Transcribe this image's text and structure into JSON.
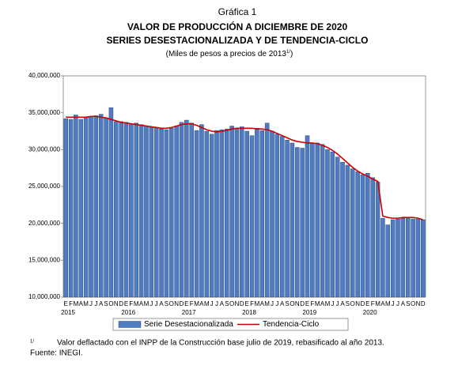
{
  "chart_data": {
    "type": "bar",
    "kicker": "Gráfica 1",
    "title": "VALOR DE PRODUCCIÓN A DICIEMBRE DE 2020",
    "title2": "SERIES DESESTACIONALIZADA Y DE TENDENCIA-CICLO",
    "subtitle": "(Miles de pesos a precios de 2013",
    "subtitle_sup": "1/",
    "subtitle_end": ")",
    "categories": [
      "E",
      "F",
      "M",
      "A",
      "M",
      "J",
      "J",
      "A",
      "S",
      "O",
      "N",
      "D",
      "E",
      "F",
      "M",
      "A",
      "M",
      "J",
      "J",
      "A",
      "S",
      "O",
      "N",
      "D",
      "E",
      "F",
      "M",
      "A",
      "M",
      "J",
      "J",
      "A",
      "S",
      "O",
      "N",
      "D",
      "E",
      "F",
      "M",
      "A",
      "M",
      "J",
      "J",
      "A",
      "S",
      "O",
      "N",
      "D",
      "E",
      "F",
      "M",
      "A",
      "M",
      "J",
      "J",
      "A",
      "S",
      "O",
      "N",
      "D",
      "E",
      "F",
      "M",
      "A",
      "M",
      "J",
      "J",
      "A",
      "S",
      "O",
      "N",
      "D"
    ],
    "years": [
      "2015",
      "2016",
      "2017",
      "2018",
      "2019",
      "2020"
    ],
    "series": [
      {
        "name": "Serie Desestacionalizada",
        "color": "#4f7cc0",
        "type": "bar",
        "values": [
          34200000,
          34100000,
          34700000,
          34100000,
          34400000,
          34500000,
          34600000,
          34800000,
          34300000,
          35700000,
          33800000,
          33800000,
          33700000,
          33500000,
          33600000,
          33400000,
          33200000,
          33000000,
          33000000,
          32800000,
          32700000,
          32900000,
          33200000,
          33700000,
          34000000,
          33600000,
          32600000,
          33400000,
          32500000,
          32100000,
          32600000,
          32700000,
          32800000,
          33200000,
          32900000,
          33100000,
          32500000,
          31900000,
          32900000,
          32600000,
          33600000,
          32500000,
          32100000,
          31800000,
          31300000,
          30900000,
          30300000,
          30200000,
          31900000,
          30900000,
          30900000,
          30700000,
          30000000,
          29700000,
          29000000,
          28300000,
          27900000,
          27400000,
          27000000,
          26600000,
          26800000,
          26200000,
          25600000,
          20700000,
          19800000,
          20500000,
          20600000,
          20700000,
          20700000,
          20600000,
          20600000,
          20500000
        ]
      },
      {
        "name": "Tendencia-Ciclo",
        "color": "#cc0000",
        "type": "line",
        "values": [
          34400000,
          34400000,
          34400000,
          34400000,
          34400000,
          34500000,
          34500000,
          34400000,
          34300000,
          34100000,
          33900000,
          33700000,
          33600000,
          33500000,
          33400000,
          33300000,
          33200000,
          33100000,
          33000000,
          32900000,
          32900000,
          33000000,
          33200000,
          33400000,
          33500000,
          33500000,
          33300000,
          33000000,
          32700000,
          32500000,
          32400000,
          32500000,
          32600000,
          32800000,
          32900000,
          32900000,
          32900000,
          32900000,
          32800000,
          32800000,
          32700000,
          32500000,
          32200000,
          31900000,
          31600000,
          31300000,
          31100000,
          31000000,
          30900000,
          30900000,
          30800000,
          30600000,
          30300000,
          29900000,
          29400000,
          28800000,
          28200000,
          27600000,
          27100000,
          26700000,
          26400000,
          26000000,
          25700000,
          21000000,
          20800000,
          20700000,
          20700000,
          20800000,
          20800000,
          20800000,
          20700000,
          20500000
        ]
      }
    ],
    "ylim": [
      10000000,
      40000000
    ],
    "yticks": [
      {
        "value": 10000000,
        "label": "10,000,000"
      },
      {
        "value": 15000000,
        "label": "15,000,000"
      },
      {
        "value": 20000000,
        "label": "20,000,000"
      },
      {
        "value": 25000000,
        "label": "25,000,000"
      },
      {
        "value": 30000000,
        "label": "30,000,000"
      },
      {
        "value": 35000000,
        "label": "35,000,000"
      },
      {
        "value": 40000000,
        "label": "40,000,000"
      }
    ],
    "footnote_mark": "1/",
    "footnote": "Valor deflactado con el INPP de la Construcción base julio de 2019, rebasificado al año 2013.",
    "source": "Fuente: INEGI."
  }
}
